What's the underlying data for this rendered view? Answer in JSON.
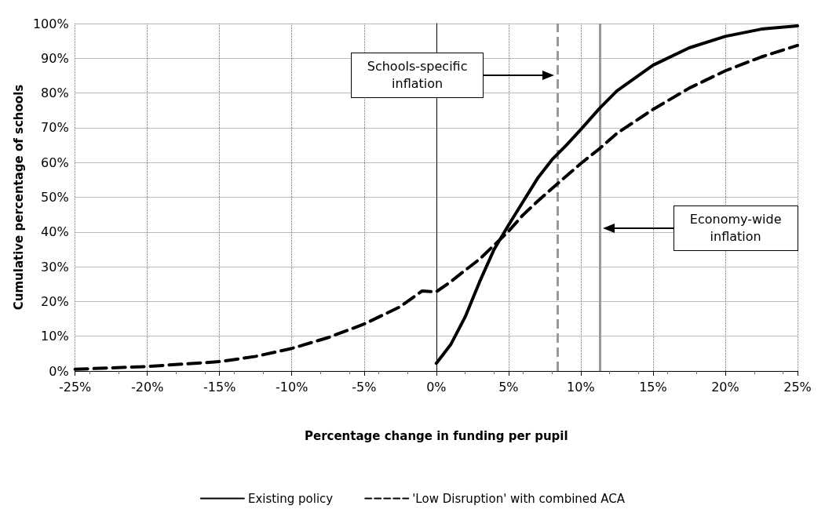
{
  "chart_data": {
    "type": "line",
    "xlabel": "Percentage change in funding per pupil",
    "ylabel": "Cumulative percentage of schools",
    "xlim": [
      -25,
      25
    ],
    "xticks": [
      {
        "value": -25,
        "label": "-25%"
      },
      {
        "value": -20,
        "label": "-20%"
      },
      {
        "value": -15,
        "label": "-15%"
      },
      {
        "value": -10,
        "label": "-10%"
      },
      {
        "value": -5,
        "label": "-5%"
      },
      {
        "value": 0,
        "label": "0%"
      },
      {
        "value": 5,
        "label": "5%"
      },
      {
        "value": 10,
        "label": "10%"
      },
      {
        "value": 15,
        "label": "15%"
      },
      {
        "value": 20,
        "label": "20%"
      },
      {
        "value": 25,
        "label": "25%"
      }
    ],
    "ylim": [
      0,
      100
    ],
    "yticks": [
      {
        "value": 0,
        "label": "0%"
      },
      {
        "value": 10,
        "label": "10%"
      },
      {
        "value": 20,
        "label": "20%"
      },
      {
        "value": 30,
        "label": "30%"
      },
      {
        "value": 40,
        "label": "40%"
      },
      {
        "value": 50,
        "label": "50%"
      },
      {
        "value": 60,
        "label": "60%"
      },
      {
        "value": 70,
        "label": "70%"
      },
      {
        "value": 80,
        "label": "80%"
      },
      {
        "value": 90,
        "label": "90%"
      },
      {
        "value": 100,
        "label": "100%"
      }
    ],
    "grid": true,
    "legend": "bottom",
    "marker": "none",
    "series": [
      {
        "name": "Existing policy",
        "color": "#000000",
        "line_style": "solid",
        "x": [
          0,
          1,
          2,
          3,
          4,
          5,
          6,
          7,
          8,
          9,
          10,
          11.3,
          12.5,
          15,
          17.5,
          20,
          22.5,
          25
        ],
        "values": [
          2.2,
          7.6,
          15.6,
          25.7,
          35,
          42,
          48.7,
          55.4,
          60.8,
          65,
          69.5,
          75.6,
          80.6,
          88,
          93,
          96.3,
          98.4,
          99.3
        ]
      },
      {
        "name": "'Low Disruption' with combined ACA",
        "color": "#000000",
        "line_style": "dashed",
        "x": [
          -25,
          -20,
          -15,
          -12.5,
          -10,
          -7.5,
          -5,
          -2.5,
          -1,
          0,
          1,
          2,
          3,
          4,
          5,
          6,
          7,
          8,
          10,
          11.3,
          12.5,
          15,
          17.5,
          20,
          22.5,
          25
        ],
        "values": [
          0.5,
          1.3,
          2.7,
          4.2,
          6.5,
          9.6,
          13.5,
          18.5,
          23,
          22.8,
          25.7,
          29,
          32.2,
          36.2,
          40.2,
          44.9,
          48.8,
          52.5,
          59.7,
          64,
          68.4,
          75.3,
          81.4,
          86.4,
          90.4,
          93.7
        ]
      }
    ],
    "ref_lines": [
      {
        "axis": "x",
        "value": 0,
        "color": "#000000",
        "line_style": "solid"
      },
      {
        "axis": "x",
        "value": 8.4,
        "color": "#999999",
        "line_style": "dashed"
      },
      {
        "axis": "x",
        "value": 11.3,
        "color": "#999999",
        "line_style": "solid"
      }
    ],
    "annotations": [
      "Schools-specific\ninflation",
      "Economy-wide\ninflation"
    ]
  }
}
